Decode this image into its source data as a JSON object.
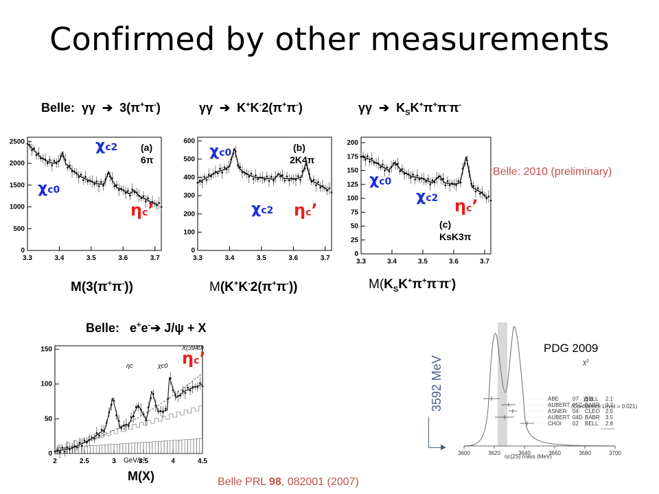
{
  "slide": {
    "title": "Confirmed by other measurements"
  },
  "headers": {
    "a": "Belle:  γγ  ➔  3(π⁺π⁻)",
    "b": "γγ  ➔  K⁺K⁻2(π⁺π⁻)",
    "c": "γγ  ➔  K_SK⁺π⁺π⁻π⁻",
    "d": "Belle:   e⁺e⁻➔ J/ψ + X"
  },
  "xlabels": {
    "a": "M(3(π⁺π⁻))",
    "b": "M(K⁺K⁻2(π⁺π⁻))",
    "c": "M(K_SK⁺π⁺π⁻π⁻)",
    "d": "M(X)"
  },
  "annotations": {
    "chi_c0": "χc0",
    "chi_c2": "χc2",
    "eta_c_prime": "ηc’"
  },
  "notes": {
    "belle_2010": "Belle: 2010 (preliminary)",
    "belle_prl": "Belle PRL 98, 082001 (2007)",
    "pdg": "PDG 2009",
    "mev": "3592 MeV"
  },
  "colors": {
    "annotation_blue": "#1a2fd6",
    "annotation_red": "#e8231e",
    "note_red": "#c0504d"
  },
  "chart_data": [
    {
      "type": "line",
      "panel": "(a) 6π",
      "x_ticks": [
        "3.3",
        "3.4",
        "3.5",
        "3.6",
        "3.7"
      ],
      "y_ticks": [
        "0",
        "500",
        "1000",
        "1500",
        "2000",
        "2500"
      ],
      "xlim": [
        3.3,
        3.72
      ],
      "ylim": [
        0,
        2600
      ],
      "x": [
        3.3,
        3.32,
        3.34,
        3.36,
        3.38,
        3.4,
        3.41,
        3.42,
        3.44,
        3.46,
        3.48,
        3.5,
        3.52,
        3.54,
        3.555,
        3.565,
        3.58,
        3.6,
        3.62,
        3.635,
        3.65,
        3.67,
        3.69,
        3.71
      ],
      "y": [
        2450,
        2300,
        2150,
        2050,
        2000,
        2050,
        2250,
        2000,
        1850,
        1720,
        1650,
        1580,
        1530,
        1520,
        1800,
        1620,
        1450,
        1380,
        1300,
        1380,
        1250,
        1180,
        1100,
        1050
      ]
    },
    {
      "type": "line",
      "panel": "(b) 2K4π",
      "x_ticks": [
        "3.3",
        "3.4",
        "3.5",
        "3.6",
        "3.7"
      ],
      "y_ticks": [
        "0",
        "100",
        "200",
        "300",
        "400",
        "500",
        "600"
      ],
      "xlim": [
        3.3,
        3.72
      ],
      "ylim": [
        0,
        620
      ],
      "x": [
        3.3,
        3.32,
        3.34,
        3.36,
        3.38,
        3.4,
        3.415,
        3.43,
        3.45,
        3.48,
        3.51,
        3.54,
        3.555,
        3.57,
        3.6,
        3.625,
        3.64,
        3.655,
        3.68,
        3.71
      ],
      "y": [
        370,
        390,
        410,
        430,
        440,
        460,
        560,
        450,
        420,
        400,
        395,
        390,
        420,
        395,
        390,
        400,
        480,
        385,
        360,
        330
      ]
    },
    {
      "type": "line",
      "panel": "(c) KsK3π",
      "x_ticks": [
        "3.3",
        "3.4",
        "3.5",
        "3.6",
        "3.7"
      ],
      "y_ticks": [
        "0",
        "25",
        "50",
        "75",
        "100",
        "125",
        "150",
        "175",
        "200"
      ],
      "xlim": [
        3.3,
        3.72
      ],
      "ylim": [
        0,
        210
      ],
      "x": [
        3.3,
        3.33,
        3.36,
        3.39,
        3.41,
        3.43,
        3.46,
        3.5,
        3.53,
        3.555,
        3.57,
        3.6,
        3.62,
        3.64,
        3.66,
        3.69,
        3.71
      ],
      "y": [
        175,
        170,
        160,
        150,
        165,
        150,
        140,
        135,
        128,
        140,
        128,
        125,
        128,
        175,
        120,
        110,
        100
      ]
    },
    {
      "type": "line",
      "panel": "Belle e+e- → J/ψ + X",
      "x_ticks": [
        "2",
        "2.5",
        "3",
        "3.5",
        "4",
        "4.5"
      ],
      "y_ticks": [
        "0",
        "50",
        "100",
        "150"
      ],
      "x_unit": "GeV/c²",
      "xlim": [
        2,
        4.5
      ],
      "ylim": [
        0,
        155
      ],
      "x": [
        2.0,
        2.3,
        2.6,
        2.85,
        2.98,
        3.1,
        3.25,
        3.41,
        3.55,
        3.64,
        3.75,
        3.9,
        3.94,
        4.05,
        4.2,
        4.35,
        4.5
      ],
      "y": [
        3,
        8,
        20,
        35,
        80,
        38,
        42,
        70,
        48,
        90,
        60,
        62,
        110,
        80,
        90,
        95,
        100
      ]
    }
  ],
  "pdg_table": {
    "rows": [
      [
        "ABE",
        "07",
        "BELL",
        "2.1"
      ],
      [
        "AUBERT",
        "05C",
        "BABR",
        "0.7"
      ],
      [
        "ASNER",
        "04",
        "CLEO",
        "2.5"
      ],
      [
        "AUBERT",
        "04D",
        "BABR",
        "3.5"
      ],
      [
        "CHOI",
        "02",
        "BELL",
        "2.8"
      ]
    ],
    "chi2_total": "11.6",
    "confidence": "(Confidence Level = 0.021)",
    "chi2_head": "χ²",
    "x_ticks": [
      "3600",
      "3620",
      "3640",
      "3660",
      "3680",
      "3700"
    ],
    "x_label": "ηc(2S) mass (MeV)"
  }
}
